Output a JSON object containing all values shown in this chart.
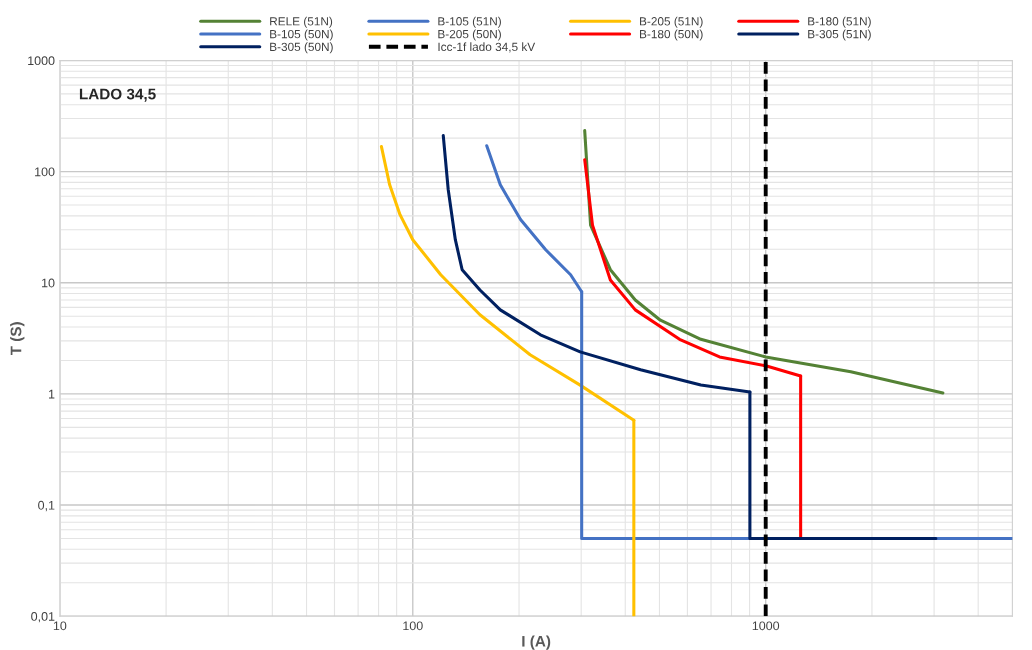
{
  "chart_data": {
    "type": "line",
    "xlabel": "I (A)",
    "ylabel": "T (S)",
    "log": "xy",
    "grid": true,
    "legend": "top",
    "xlim": [
      10,
      5000
    ],
    "ylim": [
      0.01,
      1000
    ],
    "xticks": [
      10,
      100,
      1000
    ],
    "yticks": [
      {
        "value": 0.01,
        "label": "0,01"
      },
      {
        "value": 0.1,
        "label": "0,1"
      },
      1,
      10,
      100,
      1000
    ],
    "annotations": [
      "LADO 34,5"
    ],
    "series": [
      {
        "name": "RELE (51N)",
        "color": "#548235",
        "x": [
          307,
          319,
          363,
          427,
          503,
          655,
          1000,
          1742,
          3177
        ],
        "values": [
          234,
          33,
          13.1,
          7.0,
          4.6,
          3.1,
          2.15,
          1.58,
          1.02
        ]
      },
      {
        "name": "B-105 (51N)",
        "color": "#4472c4",
        "x": [
          162,
          177,
          202,
          238,
          280,
          301
        ],
        "values": [
          171,
          76,
          37,
          19.8,
          11.8,
          8.3
        ]
      },
      {
        "name": "B-205 (51N)",
        "color": "#ffc000",
        "x": [
          81.5,
          86,
          92,
          100,
          120,
          155,
          215,
          298,
          423
        ],
        "values": [
          168,
          76,
          41,
          24.4,
          11.8,
          5.15,
          2.25,
          1.2,
          0.58
        ]
      },
      {
        "name": "B-180 (51N)",
        "color": "#ff0000",
        "x": [
          307,
          323,
          363,
          427,
          570,
          740,
          1000,
          1256
        ],
        "values": [
          128,
          33,
          10.6,
          5.7,
          3.1,
          2.15,
          1.79,
          1.45
        ]
      },
      {
        "name": "B-105 (50N)",
        "color": "#4472c4",
        "x": [
          301,
          301,
          5000
        ],
        "values": [
          8.3,
          0.05,
          0.05
        ]
      },
      {
        "name": "B-205 (50N)",
        "color": "#ffc000",
        "x": [
          423,
          423
        ],
        "values": [
          0.58,
          0.01
        ]
      },
      {
        "name": "B-180 (50N)",
        "color": "#ff0000",
        "x": [
          1256,
          1256
        ],
        "values": [
          1.45,
          0.05
        ]
      },
      {
        "name": "B-305 (51N)",
        "color": "#002060",
        "x": [
          122,
          126,
          132,
          138,
          155,
          177,
          230,
          298,
          442,
          655,
          902
        ],
        "values": [
          211,
          69,
          24.4,
          13.1,
          8.6,
          5.7,
          3.4,
          2.39,
          1.65,
          1.2,
          1.04
        ]
      },
      {
        "name": "B-305 (50N)",
        "color": "#002060",
        "x": [
          902,
          902,
          3035
        ],
        "values": [
          1.04,
          0.05,
          0.05
        ]
      }
    ],
    "ref_lines": [
      {
        "axis": "x",
        "value": 1000,
        "label": "Icc-1f lado 34,5 kV",
        "color": "#000000",
        "line_style": "dashed"
      }
    ]
  }
}
